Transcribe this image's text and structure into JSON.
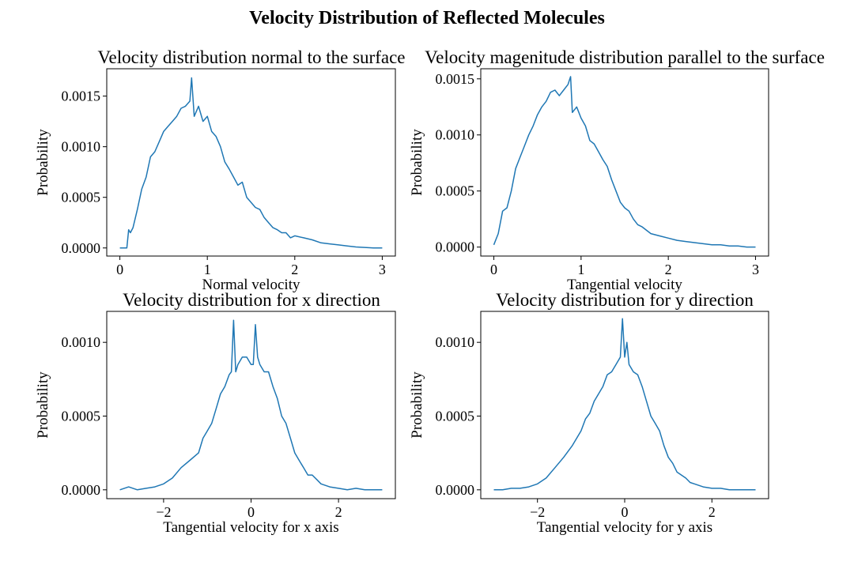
{
  "figure": {
    "title": "Velocity Distribution of Reflected Molecules",
    "line_color": "#1f77b4"
  },
  "chart_data": [
    {
      "type": "line",
      "title": "Velocity distribution normal to the surface",
      "xlabel": "Normal velocity",
      "ylabel": "Probability",
      "xlim": [
        -0.15,
        3.15
      ],
      "ylim": [
        -8e-05,
        0.00177
      ],
      "xticks": [
        0,
        1,
        2,
        3
      ],
      "xtick_labels": [
        "0",
        "1",
        "2",
        "3"
      ],
      "yticks": [
        0,
        0.0005,
        0.001,
        0.0015
      ],
      "ytick_labels": [
        "0.0000",
        "0.0005",
        "0.0010",
        "0.0015"
      ],
      "grid": false,
      "legend": "none",
      "series": [
        {
          "x": [
            0,
            0.08,
            0.1,
            0.12,
            0.15,
            0.2,
            0.25,
            0.3,
            0.35,
            0.4,
            0.45,
            0.5,
            0.55,
            0.6,
            0.65,
            0.7,
            0.75,
            0.8,
            0.82,
            0.85,
            0.9,
            0.95,
            1.0,
            1.05,
            1.1,
            1.15,
            1.2,
            1.25,
            1.3,
            1.35,
            1.4,
            1.45,
            1.5,
            1.55,
            1.6,
            1.65,
            1.7,
            1.75,
            1.8,
            1.85,
            1.9,
            1.95,
            2.0,
            2.1,
            2.2,
            2.3,
            2.4,
            2.5,
            2.6,
            2.7,
            2.8,
            2.9,
            3.0
          ],
          "y": [
            0.0,
            0.0,
            0.00018,
            0.00015,
            0.0002,
            0.00038,
            0.00058,
            0.0007,
            0.0009,
            0.00095,
            0.00105,
            0.00115,
            0.0012,
            0.00125,
            0.0013,
            0.00138,
            0.0014,
            0.00145,
            0.00168,
            0.0013,
            0.0014,
            0.00125,
            0.0013,
            0.00115,
            0.0011,
            0.001,
            0.00085,
            0.00078,
            0.0007,
            0.00062,
            0.00065,
            0.0005,
            0.00045,
            0.0004,
            0.00038,
            0.0003,
            0.00025,
            0.0002,
            0.00018,
            0.00015,
            0.00015,
            0.0001,
            0.00012,
            0.0001,
            8e-05,
            5e-05,
            4e-05,
            3e-05,
            2e-05,
            1e-05,
            5e-06,
            0.0,
            0.0
          ]
        }
      ]
    },
    {
      "type": "line",
      "title": "Velocity magenitude distribution parallel to the surface",
      "xlabel": "Tangential velocity",
      "ylabel": "Probability",
      "xlim": [
        -0.15,
        3.15
      ],
      "ylim": [
        -8e-05,
        0.00159
      ],
      "xticks": [
        0,
        1,
        2,
        3
      ],
      "xtick_labels": [
        "0",
        "1",
        "2",
        "3"
      ],
      "yticks": [
        0,
        0.0005,
        0.001,
        0.0015
      ],
      "ytick_labels": [
        "0.0000",
        "0.0005",
        "0.0010",
        "0.0015"
      ],
      "grid": false,
      "legend": "none",
      "series": [
        {
          "x": [
            0,
            0.05,
            0.1,
            0.15,
            0.2,
            0.25,
            0.3,
            0.35,
            0.4,
            0.45,
            0.5,
            0.55,
            0.6,
            0.65,
            0.7,
            0.75,
            0.8,
            0.85,
            0.88,
            0.9,
            0.95,
            1.0,
            1.05,
            1.1,
            1.15,
            1.2,
            1.25,
            1.3,
            1.35,
            1.4,
            1.45,
            1.5,
            1.55,
            1.6,
            1.65,
            1.7,
            1.75,
            1.8,
            1.9,
            2.0,
            2.1,
            2.2,
            2.3,
            2.4,
            2.5,
            2.6,
            2.7,
            2.8,
            2.9,
            3.0
          ],
          "y": [
            2e-05,
            0.00012,
            0.00032,
            0.00035,
            0.0005,
            0.0007,
            0.0008,
            0.0009,
            0.001,
            0.00108,
            0.00118,
            0.00125,
            0.0013,
            0.00138,
            0.0014,
            0.00135,
            0.0014,
            0.00145,
            0.00152,
            0.0012,
            0.00125,
            0.00115,
            0.00108,
            0.00095,
            0.00092,
            0.00085,
            0.00078,
            0.00072,
            0.0006,
            0.0005,
            0.0004,
            0.00035,
            0.00032,
            0.00025,
            0.0002,
            0.00018,
            0.00015,
            0.00012,
            0.0001,
            8e-05,
            6e-05,
            5e-05,
            4e-05,
            3e-05,
            2e-05,
            2e-05,
            1e-05,
            1e-05,
            0.0,
            0.0
          ]
        }
      ]
    },
    {
      "type": "line",
      "title": "Velocity distribution for x direction",
      "xlabel": "Tangential velocity for x axis",
      "ylabel": "Probability",
      "xlim": [
        -3.3,
        3.3
      ],
      "ylim": [
        -6e-05,
        0.00121
      ],
      "xticks": [
        -2,
        0,
        2
      ],
      "xtick_labels": [
        "−2",
        "0",
        "2"
      ],
      "yticks": [
        0,
        0.0005,
        0.001
      ],
      "ytick_labels": [
        "0.0000",
        "0.0005",
        "0.0010"
      ],
      "grid": false,
      "legend": "none",
      "series": [
        {
          "x": [
            -3.0,
            -2.8,
            -2.6,
            -2.4,
            -2.2,
            -2.0,
            -1.8,
            -1.6,
            -1.4,
            -1.2,
            -1.1,
            -1.0,
            -0.9,
            -0.8,
            -0.7,
            -0.6,
            -0.5,
            -0.45,
            -0.4,
            -0.35,
            -0.3,
            -0.2,
            -0.1,
            0.0,
            0.05,
            0.1,
            0.15,
            0.2,
            0.3,
            0.4,
            0.5,
            0.6,
            0.7,
            0.8,
            0.9,
            1.0,
            1.1,
            1.2,
            1.3,
            1.4,
            1.5,
            1.6,
            1.8,
            2.0,
            2.2,
            2.4,
            2.6,
            2.8,
            3.0
          ],
          "y": [
            0.0,
            2e-05,
            0.0,
            1e-05,
            2e-05,
            4e-05,
            8e-05,
            0.00015,
            0.0002,
            0.00025,
            0.00035,
            0.0004,
            0.00045,
            0.00055,
            0.00065,
            0.0007,
            0.00078,
            0.0008,
            0.00115,
            0.0008,
            0.00085,
            0.0009,
            0.0009,
            0.00085,
            0.00085,
            0.00112,
            0.0009,
            0.00085,
            0.0008,
            0.0008,
            0.0007,
            0.00062,
            0.0005,
            0.00045,
            0.00035,
            0.00025,
            0.0002,
            0.00015,
            0.0001,
            0.0001,
            7e-05,
            4e-05,
            2e-05,
            1e-05,
            0.0,
            1e-05,
            0.0,
            0.0,
            0.0
          ]
        }
      ]
    },
    {
      "type": "line",
      "title": "Velocity distribution for y direction",
      "xlabel": "Tangential velocity for y axis",
      "ylabel": "Probability",
      "xlim": [
        -3.3,
        3.3
      ],
      "ylim": [
        -6e-05,
        0.00121
      ],
      "xticks": [
        -2,
        0,
        2
      ],
      "xtick_labels": [
        "−2",
        "0",
        "2"
      ],
      "yticks": [
        0,
        0.0005,
        0.001
      ],
      "ytick_labels": [
        "0.0000",
        "0.0005",
        "0.0010"
      ],
      "grid": false,
      "legend": "none",
      "series": [
        {
          "x": [
            -3.0,
            -2.8,
            -2.6,
            -2.4,
            -2.2,
            -2.0,
            -1.8,
            -1.6,
            -1.4,
            -1.2,
            -1.1,
            -1.0,
            -0.9,
            -0.8,
            -0.7,
            -0.6,
            -0.5,
            -0.4,
            -0.3,
            -0.2,
            -0.1,
            -0.05,
            0.0,
            0.05,
            0.1,
            0.2,
            0.3,
            0.4,
            0.5,
            0.6,
            0.7,
            0.8,
            0.9,
            1.0,
            1.1,
            1.2,
            1.3,
            1.4,
            1.5,
            1.6,
            1.8,
            2.0,
            2.2,
            2.4,
            2.6,
            2.8,
            3.0
          ],
          "y": [
            0.0,
            0.0,
            1e-05,
            1e-05,
            2e-05,
            4e-05,
            8e-05,
            0.00015,
            0.00022,
            0.0003,
            0.00035,
            0.0004,
            0.00048,
            0.00052,
            0.0006,
            0.00065,
            0.0007,
            0.00078,
            0.0008,
            0.00085,
            0.0009,
            0.00116,
            0.0009,
            0.001,
            0.00085,
            0.0008,
            0.00078,
            0.0007,
            0.0006,
            0.0005,
            0.00045,
            0.0004,
            0.0003,
            0.00022,
            0.00018,
            0.00012,
            0.0001,
            8e-05,
            5e-05,
            4e-05,
            2e-05,
            1e-05,
            1e-05,
            0.0,
            0.0,
            0.0,
            0.0
          ]
        }
      ]
    }
  ]
}
